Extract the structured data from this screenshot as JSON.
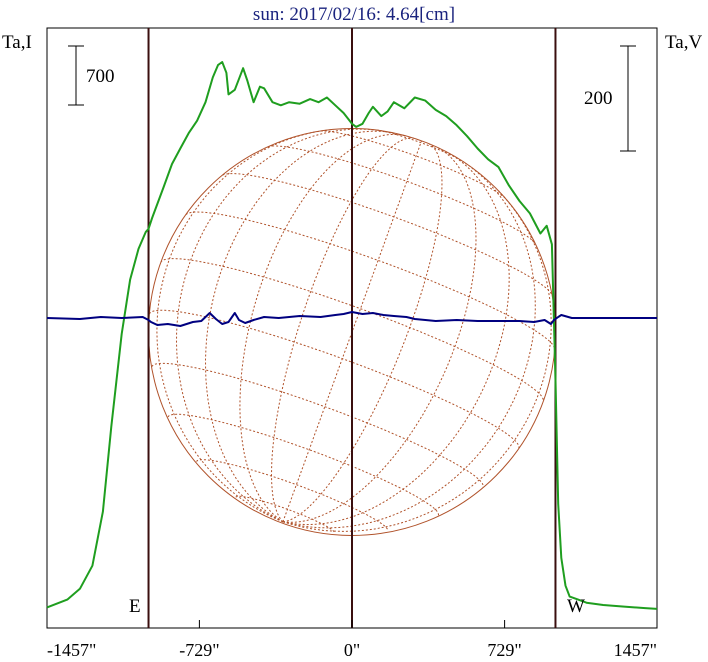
{
  "chart_data": {
    "type": "line",
    "title": "sun: 2017/02/16: 4.64[cm]",
    "ylabel_left": "Ta,I",
    "ylabel_right": "Ta,V",
    "xlim": [
      -1457,
      1457
    ],
    "xticks": [
      "-1457\"",
      "-729\"",
      "0\"",
      "729\"",
      "1457\""
    ],
    "xtick_values": [
      -1457,
      -729,
      0,
      729,
      1457
    ],
    "scale_left_label": "700",
    "scale_right_label": "200",
    "limb_labels": {
      "east": "E",
      "west": "W"
    },
    "vertical_markers": [
      -972,
      0,
      972
    ],
    "series": [
      {
        "key": "I",
        "color": "#1f9e1f",
        "x": [
          -1457,
          -1360,
          -1300,
          -1240,
          -1190,
          -1150,
          -1100,
          -1060,
          -1020,
          -985,
          -972,
          -955,
          -900,
          -860,
          -820,
          -780,
          -740,
          -700,
          -665,
          -640,
          -620,
          -600,
          -590,
          -560,
          -520,
          -500,
          -470,
          -440,
          -420,
          -380,
          -340,
          -300,
          -250,
          -200,
          -160,
          -120,
          -80,
          -40,
          0,
          20,
          50,
          80,
          100,
          140,
          170,
          200,
          250,
          300,
          350,
          400,
          450,
          500,
          550,
          600,
          650,
          700,
          750,
          800,
          850,
          900,
          930,
          955,
          972,
          985,
          1000,
          1020,
          1040,
          1080,
          1120,
          1200,
          1300,
          1400,
          1457
        ],
        "y": [
          30,
          80,
          150,
          300,
          650,
          1200,
          1800,
          2150,
          2350,
          2460,
          2480,
          2550,
          2750,
          2900,
          3000,
          3100,
          3180,
          3300,
          3460,
          3540,
          3560,
          3490,
          3350,
          3380,
          3520,
          3440,
          3300,
          3400,
          3390,
          3300,
          3280,
          3300,
          3290,
          3320,
          3300,
          3330,
          3280,
          3230,
          3160,
          3140,
          3160,
          3230,
          3270,
          3210,
          3240,
          3300,
          3260,
          3330,
          3310,
          3250,
          3210,
          3150,
          3080,
          3000,
          2930,
          2880,
          2760,
          2660,
          2580,
          2450,
          2500,
          2380,
          1500,
          700,
          350,
          170,
          100,
          80,
          60,
          45,
          35,
          25,
          20
        ]
      },
      {
        "key": "V",
        "color": "#000080",
        "x": [
          -1457,
          -1300,
          -1200,
          -1100,
          -1000,
          -972,
          -960,
          -930,
          -880,
          -820,
          -760,
          -720,
          -700,
          -680,
          -650,
          -620,
          -590,
          -560,
          -540,
          -510,
          -470,
          -420,
          -350,
          -250,
          -150,
          -80,
          -40,
          0,
          50,
          100,
          150,
          200,
          260,
          300,
          350,
          400,
          500,
          600,
          700,
          800,
          870,
          920,
          950,
          965,
          972,
          985,
          1000,
          1050,
          1150,
          1250,
          1350,
          1457
        ],
        "y": [
          0,
          -1,
          1,
          0,
          1,
          -2,
          -4,
          -7,
          -6,
          -8,
          -4,
          -3,
          1,
          5,
          -1,
          -6,
          -4,
          5,
          -2,
          -5,
          -2,
          1,
          0,
          2,
          1,
          3,
          4,
          6,
          4,
          5,
          3,
          2,
          1,
          -1,
          -2,
          -3,
          -2,
          -3,
          -3,
          -3,
          -4,
          -2,
          -6,
          -2,
          -1,
          1,
          3,
          0,
          0,
          0,
          0,
          0
        ]
      }
    ],
    "solar_disk": {
      "radius_arcsec": 972,
      "p_angle_deg": -20,
      "b0_deg": -7,
      "color": "#b0522a"
    }
  }
}
